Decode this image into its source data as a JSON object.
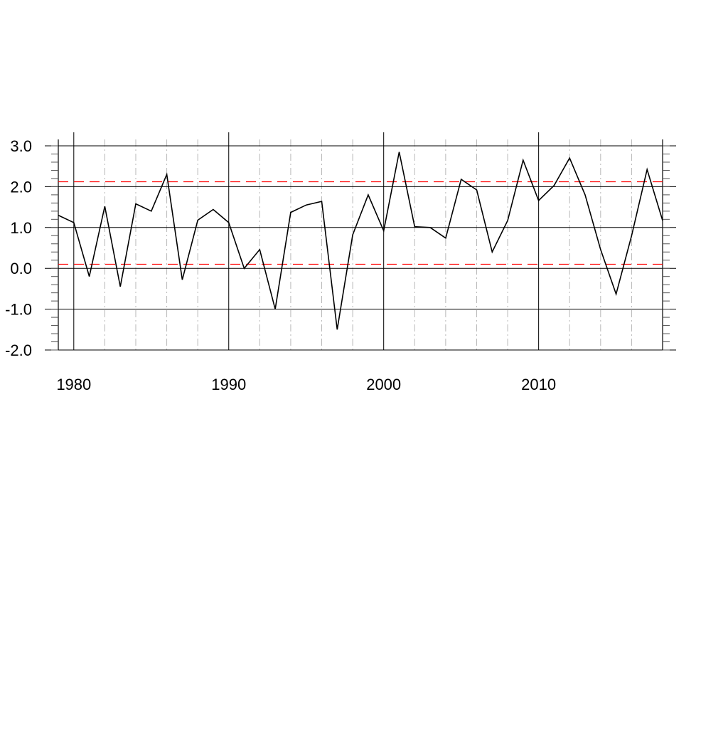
{
  "chart_data": {
    "type": "line",
    "title": "",
    "xlabel": "",
    "ylabel": "",
    "xlim": [
      1979,
      2018
    ],
    "ylim": [
      -2.0,
      3.0
    ],
    "x_ticks": [
      1980,
      1990,
      2000,
      2010
    ],
    "x_tick_labels": [
      "1980",
      "1990",
      "2000",
      "2010"
    ],
    "y_ticks": [
      -2.0,
      -1.0,
      0.0,
      1.0,
      2.0,
      3.0
    ],
    "y_tick_labels": [
      "-2.0",
      "-1.0",
      "0.0",
      "1.0",
      "2.0",
      "3.0"
    ],
    "grid": "vertical lines: solid at decades, dash-dot every 2 years",
    "series": [
      {
        "color": "#000000",
        "x": [
          1979,
          1980,
          1981,
          1982,
          1983,
          1984,
          1985,
          1986,
          1987,
          1988,
          1989,
          1990,
          1991,
          1992,
          1993,
          1994,
          1995,
          1996,
          1997,
          1998,
          1999,
          2000,
          2001,
          2002,
          2003,
          2004,
          2005,
          2006,
          2007,
          2008,
          2009,
          2010,
          2011,
          2012,
          2013,
          2014,
          2015,
          2016,
          2017,
          2018
        ],
        "values": [
          1.3,
          1.12,
          -0.2,
          1.52,
          -0.45,
          1.58,
          1.4,
          2.3,
          -0.28,
          1.18,
          1.44,
          1.12,
          0.0,
          0.46,
          -1.0,
          1.37,
          1.55,
          1.64,
          -1.5,
          0.82,
          1.8,
          0.92,
          2.85,
          1.02,
          1.0,
          0.74,
          2.18,
          1.92,
          0.4,
          1.17,
          2.65,
          1.66,
          2.03,
          2.7,
          1.8,
          0.46,
          -0.63,
          0.8,
          2.42,
          1.17
        ]
      }
    ],
    "reference_lines": [
      {
        "y": 2.12,
        "color": "#ff0000",
        "style": "dashed"
      },
      {
        "y": 0.1,
        "color": "#ff0000",
        "style": "dashed"
      }
    ]
  }
}
